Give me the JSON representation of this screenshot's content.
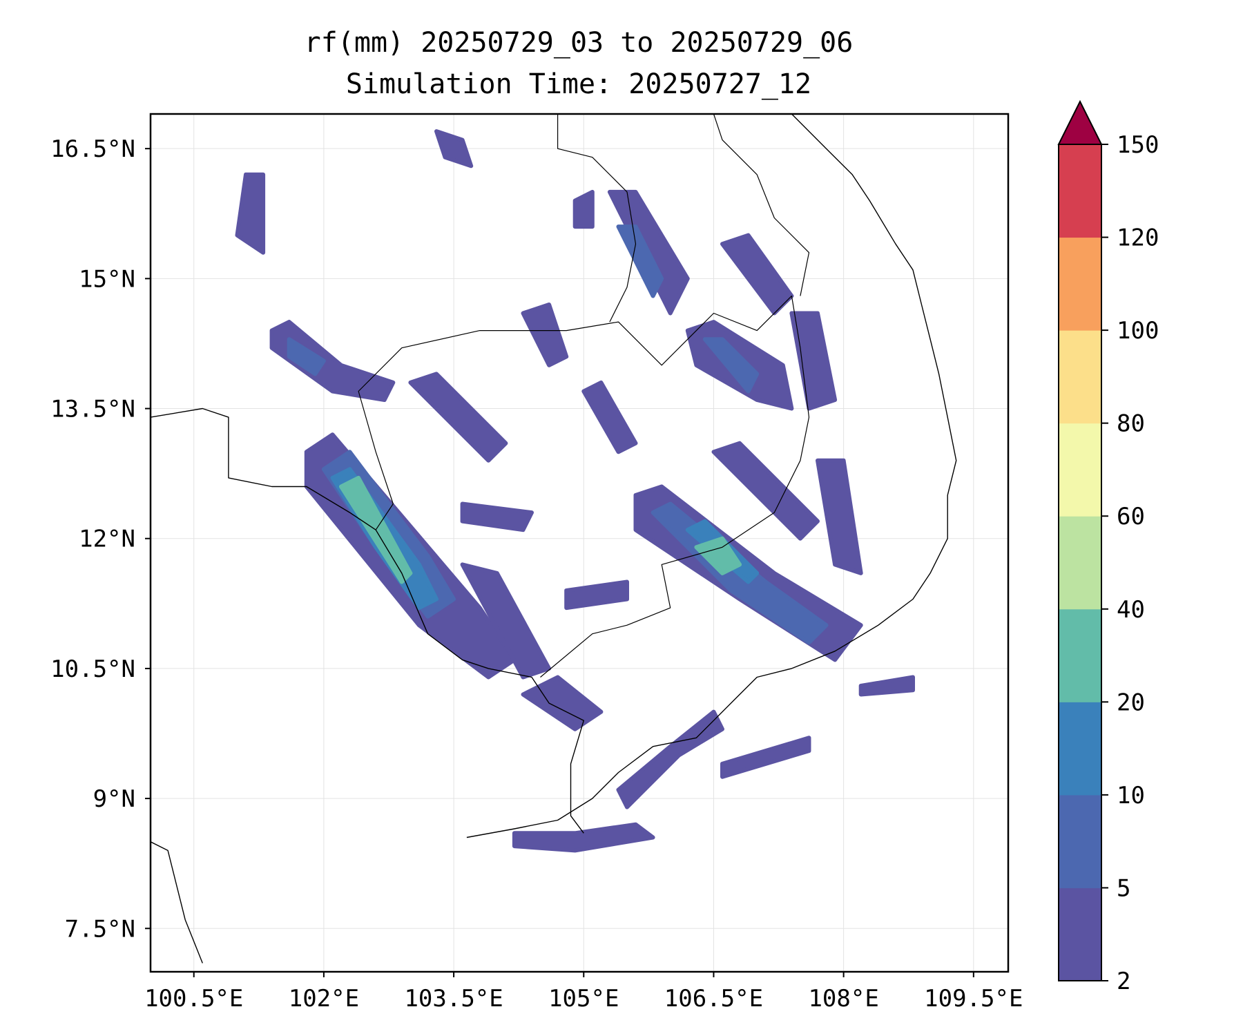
{
  "title_line1": "rf(mm) 20250729_03 to 20250729_06",
  "title_line2": "Simulation Time: 20250727_12",
  "map": {
    "lon_range": [
      100.0,
      109.9
    ],
    "lat_range": [
      7.0,
      16.9
    ],
    "lat_ticks": [
      {
        "value": 16.5,
        "label": "16.5°N"
      },
      {
        "value": 15.0,
        "label": "15°N"
      },
      {
        "value": 13.5,
        "label": "13.5°N"
      },
      {
        "value": 12.0,
        "label": "12°N"
      },
      {
        "value": 10.5,
        "label": "10.5°N"
      },
      {
        "value": 9.0,
        "label": "9°N"
      },
      {
        "value": 7.5,
        "label": "7.5°N"
      }
    ],
    "lon_ticks": [
      {
        "value": 100.5,
        "label": "100.5°E"
      },
      {
        "value": 102.0,
        "label": "102°E"
      },
      {
        "value": 103.5,
        "label": "103.5°E"
      },
      {
        "value": 105.0,
        "label": "105°E"
      },
      {
        "value": 106.5,
        "label": "106.5°E"
      },
      {
        "value": 108.0,
        "label": "108°E"
      },
      {
        "value": 109.5,
        "label": "109.5°E"
      }
    ],
    "grid": true
  },
  "colorbar": {
    "levels": [
      2,
      5,
      10,
      20,
      40,
      60,
      80,
      100,
      120,
      150
    ],
    "colors": [
      "#5b54a2",
      "#4c68b0",
      "#3a81bb",
      "#62bca9",
      "#bce3a1",
      "#f3f8ab",
      "#fcdf8a",
      "#f8a05d",
      "#d63f50"
    ],
    "extend_color": "#9e0142"
  },
  "rain_bands": [
    {
      "level": 0,
      "pts": [
        [
          101.4,
          14.4
        ],
        [
          101.6,
          14.5
        ],
        [
          102.2,
          14.0
        ],
        [
          102.8,
          13.8
        ],
        [
          102.7,
          13.6
        ],
        [
          102.1,
          13.7
        ],
        [
          101.4,
          14.2
        ]
      ]
    },
    {
      "level": 1,
      "pts": [
        [
          101.6,
          14.3
        ],
        [
          102.0,
          14.05
        ],
        [
          101.9,
          13.9
        ],
        [
          101.6,
          14.1
        ]
      ]
    },
    {
      "level": 0,
      "pts": [
        [
          101.8,
          13.0
        ],
        [
          102.1,
          13.2
        ],
        [
          103.8,
          11.2
        ],
        [
          104.2,
          10.6
        ],
        [
          103.9,
          10.4
        ],
        [
          103.1,
          11.0
        ],
        [
          101.8,
          12.6
        ]
      ]
    },
    {
      "level": 1,
      "pts": [
        [
          102.0,
          12.8
        ],
        [
          102.3,
          13.0
        ],
        [
          103.2,
          11.8
        ],
        [
          103.5,
          11.3
        ],
        [
          103.2,
          11.1
        ],
        [
          102.6,
          11.9
        ]
      ]
    },
    {
      "level": 2,
      "pts": [
        [
          102.1,
          12.7
        ],
        [
          102.3,
          12.8
        ],
        [
          103.1,
          11.7
        ],
        [
          103.3,
          11.3
        ],
        [
          103.1,
          11.2
        ],
        [
          102.6,
          11.9
        ]
      ]
    },
    {
      "level": 3,
      "pts": [
        [
          102.2,
          12.6
        ],
        [
          102.4,
          12.7
        ],
        [
          103.0,
          11.6
        ],
        [
          102.9,
          11.5
        ]
      ]
    },
    {
      "level": 0,
      "pts": [
        [
          103.6,
          11.7
        ],
        [
          104.0,
          11.6
        ],
        [
          104.6,
          10.5
        ],
        [
          104.3,
          10.4
        ]
      ]
    },
    {
      "level": 0,
      "pts": [
        [
          105.6,
          12.5
        ],
        [
          105.9,
          12.6
        ],
        [
          107.2,
          11.6
        ],
        [
          108.2,
          11.0
        ],
        [
          107.9,
          10.6
        ],
        [
          106.8,
          11.3
        ],
        [
          105.6,
          12.1
        ]
      ]
    },
    {
      "level": 1,
      "pts": [
        [
          105.8,
          12.3
        ],
        [
          106.0,
          12.4
        ],
        [
          107.1,
          11.5
        ],
        [
          107.8,
          11.0
        ],
        [
          107.6,
          10.8
        ],
        [
          106.7,
          11.4
        ]
      ]
    },
    {
      "level": 2,
      "pts": [
        [
          106.2,
          12.1
        ],
        [
          106.4,
          12.2
        ],
        [
          107.0,
          11.6
        ],
        [
          106.9,
          11.5
        ]
      ]
    },
    {
      "level": 3,
      "pts": [
        [
          106.3,
          11.9
        ],
        [
          106.6,
          12.0
        ],
        [
          106.8,
          11.7
        ],
        [
          106.6,
          11.6
        ]
      ]
    },
    {
      "level": 0,
      "pts": [
        [
          106.5,
          13.0
        ],
        [
          106.8,
          13.1
        ],
        [
          107.7,
          12.2
        ],
        [
          107.5,
          12.0
        ]
      ]
    },
    {
      "level": 0,
      "pts": [
        [
          105.3,
          16.0
        ],
        [
          105.6,
          16.0
        ],
        [
          106.2,
          15.0
        ],
        [
          106.0,
          14.6
        ],
        [
          105.8,
          15.0
        ]
      ]
    },
    {
      "level": 1,
      "pts": [
        [
          105.4,
          15.6
        ],
        [
          105.6,
          15.6
        ],
        [
          105.9,
          15.0
        ],
        [
          105.8,
          14.8
        ]
      ]
    },
    {
      "level": 0,
      "pts": [
        [
          106.2,
          14.4
        ],
        [
          106.5,
          14.5
        ],
        [
          107.3,
          14.0
        ],
        [
          107.4,
          13.5
        ],
        [
          107.0,
          13.6
        ],
        [
          106.3,
          14.0
        ]
      ]
    },
    {
      "level": 1,
      "pts": [
        [
          106.4,
          14.3
        ],
        [
          106.6,
          14.3
        ],
        [
          107.0,
          13.9
        ],
        [
          106.9,
          13.7
        ]
      ]
    },
    {
      "level": 0,
      "pts": [
        [
          107.4,
          14.6
        ],
        [
          107.7,
          14.6
        ],
        [
          107.9,
          13.6
        ],
        [
          107.6,
          13.5
        ]
      ]
    },
    {
      "level": 0,
      "pts": [
        [
          106.6,
          15.4
        ],
        [
          106.9,
          15.5
        ],
        [
          107.4,
          14.8
        ],
        [
          107.2,
          14.6
        ]
      ]
    },
    {
      "level": 0,
      "pts": [
        [
          101.1,
          16.2
        ],
        [
          101.3,
          16.2
        ],
        [
          101.3,
          15.3
        ],
        [
          101.0,
          15.5
        ]
      ]
    },
    {
      "level": 0,
      "pts": [
        [
          103.0,
          13.8
        ],
        [
          103.3,
          13.9
        ],
        [
          104.1,
          13.1
        ],
        [
          103.9,
          12.9
        ]
      ]
    },
    {
      "level": 0,
      "pts": [
        [
          103.6,
          12.4
        ],
        [
          104.4,
          12.3
        ],
        [
          104.3,
          12.1
        ],
        [
          103.6,
          12.2
        ]
      ]
    },
    {
      "level": 0,
      "pts": [
        [
          105.0,
          13.7
        ],
        [
          105.2,
          13.8
        ],
        [
          105.6,
          13.1
        ],
        [
          105.4,
          13.0
        ]
      ]
    },
    {
      "level": 0,
      "pts": [
        [
          104.3,
          10.2
        ],
        [
          104.7,
          10.4
        ],
        [
          105.2,
          10.0
        ],
        [
          104.9,
          9.8
        ]
      ]
    },
    {
      "level": 0,
      "pts": [
        [
          104.2,
          8.6
        ],
        [
          104.9,
          8.6
        ],
        [
          105.6,
          8.7
        ],
        [
          105.8,
          8.55
        ],
        [
          104.9,
          8.4
        ],
        [
          104.2,
          8.45
        ]
      ]
    },
    {
      "level": 0,
      "pts": [
        [
          105.4,
          9.1
        ],
        [
          106.0,
          9.6
        ],
        [
          106.5,
          10.0
        ],
        [
          106.6,
          9.8
        ],
        [
          106.1,
          9.5
        ],
        [
          105.5,
          8.9
        ]
      ]
    },
    {
      "level": 0,
      "pts": [
        [
          106.6,
          9.4
        ],
        [
          107.6,
          9.7
        ],
        [
          107.6,
          9.55
        ],
        [
          106.6,
          9.25
        ]
      ]
    },
    {
      "level": 0,
      "pts": [
        [
          108.2,
          10.3
        ],
        [
          108.8,
          10.4
        ],
        [
          108.8,
          10.25
        ],
        [
          108.2,
          10.2
        ]
      ]
    },
    {
      "level": 0,
      "pts": [
        [
          107.7,
          12.9
        ],
        [
          108.0,
          12.9
        ],
        [
          108.2,
          11.6
        ],
        [
          107.9,
          11.7
        ]
      ]
    },
    {
      "level": 0,
      "pts": [
        [
          104.3,
          14.6
        ],
        [
          104.6,
          14.7
        ],
        [
          104.8,
          14.1
        ],
        [
          104.6,
          14.0
        ]
      ]
    },
    {
      "level": 0,
      "pts": [
        [
          104.8,
          11.4
        ],
        [
          105.5,
          11.5
        ],
        [
          105.5,
          11.3
        ],
        [
          104.8,
          11.2
        ]
      ]
    },
    {
      "level": 0,
      "pts": [
        [
          104.9,
          15.9
        ],
        [
          105.1,
          16.0
        ],
        [
          105.1,
          15.6
        ],
        [
          104.9,
          15.6
        ]
      ]
    },
    {
      "level": 0,
      "pts": [
        [
          103.3,
          16.7
        ],
        [
          103.6,
          16.6
        ],
        [
          103.7,
          16.3
        ],
        [
          103.4,
          16.4
        ]
      ]
    }
  ],
  "coastlines": [
    [
      [
        103.65,
        8.55
      ],
      [
        104.2,
        8.65
      ],
      [
        104.7,
        8.75
      ],
      [
        105.1,
        9.0
      ],
      [
        105.4,
        9.3
      ],
      [
        105.8,
        9.6
      ],
      [
        106.3,
        9.7
      ],
      [
        106.8,
        10.2
      ],
      [
        107.0,
        10.4
      ],
      [
        107.4,
        10.5
      ],
      [
        107.9,
        10.7
      ],
      [
        108.4,
        11.0
      ],
      [
        108.8,
        11.3
      ],
      [
        109.0,
        11.6
      ],
      [
        109.2,
        12.0
      ],
      [
        109.2,
        12.5
      ],
      [
        109.3,
        12.9
      ],
      [
        109.2,
        13.4
      ],
      [
        109.1,
        13.9
      ],
      [
        109.0,
        14.3
      ],
      [
        108.9,
        14.7
      ],
      [
        108.8,
        15.1
      ],
      [
        108.6,
        15.4
      ],
      [
        108.3,
        15.9
      ],
      [
        108.1,
        16.2
      ],
      [
        107.8,
        16.5
      ],
      [
        107.4,
        16.9
      ]
    ],
    [
      [
        105.0,
        8.6
      ],
      [
        104.85,
        8.8
      ],
      [
        104.85,
        9.4
      ],
      [
        105.0,
        9.9
      ],
      [
        104.6,
        10.1
      ],
      [
        104.4,
        10.4
      ],
      [
        103.9,
        10.5
      ],
      [
        103.6,
        10.6
      ],
      [
        103.2,
        10.9
      ],
      [
        102.9,
        11.6
      ],
      [
        102.6,
        12.1
      ],
      [
        102.3,
        12.3
      ],
      [
        101.8,
        12.6
      ],
      [
        101.4,
        12.6
      ],
      [
        100.9,
        12.7
      ],
      [
        100.9,
        13.4
      ],
      [
        100.6,
        13.5
      ],
      [
        100.0,
        13.4
      ]
    ],
    [
      [
        100.0,
        8.5
      ],
      [
        100.2,
        8.4
      ],
      [
        100.4,
        7.6
      ],
      [
        100.6,
        7.1
      ]
    ]
  ],
  "borders": [
    [
      [
        102.6,
        12.1
      ],
      [
        102.8,
        12.4
      ],
      [
        102.6,
        13.0
      ],
      [
        102.4,
        13.7
      ],
      [
        102.9,
        14.2
      ],
      [
        103.8,
        14.4
      ],
      [
        104.8,
        14.4
      ],
      [
        105.4,
        14.5
      ],
      [
        105.9,
        14.0
      ],
      [
        106.2,
        14.3
      ],
      [
        106.5,
        14.6
      ],
      [
        107.0,
        14.4
      ],
      [
        107.4,
        14.8
      ],
      [
        107.5,
        14.2
      ],
      [
        107.6,
        13.4
      ],
      [
        107.5,
        12.9
      ],
      [
        107.2,
        12.3
      ],
      [
        106.6,
        11.9
      ],
      [
        105.9,
        11.7
      ],
      [
        106.0,
        11.2
      ],
      [
        105.5,
        11.0
      ],
      [
        105.1,
        10.9
      ],
      [
        104.5,
        10.4
      ]
    ],
    [
      [
        105.3,
        14.5
      ],
      [
        105.5,
        14.9
      ],
      [
        105.6,
        15.4
      ],
      [
        105.5,
        16.0
      ],
      [
        105.1,
        16.4
      ],
      [
        104.7,
        16.5
      ],
      [
        104.7,
        16.9
      ]
    ],
    [
      [
        107.5,
        14.8
      ],
      [
        107.6,
        15.3
      ],
      [
        107.2,
        15.7
      ],
      [
        107.0,
        16.2
      ],
      [
        106.6,
        16.6
      ],
      [
        106.5,
        16.9
      ]
    ]
  ]
}
